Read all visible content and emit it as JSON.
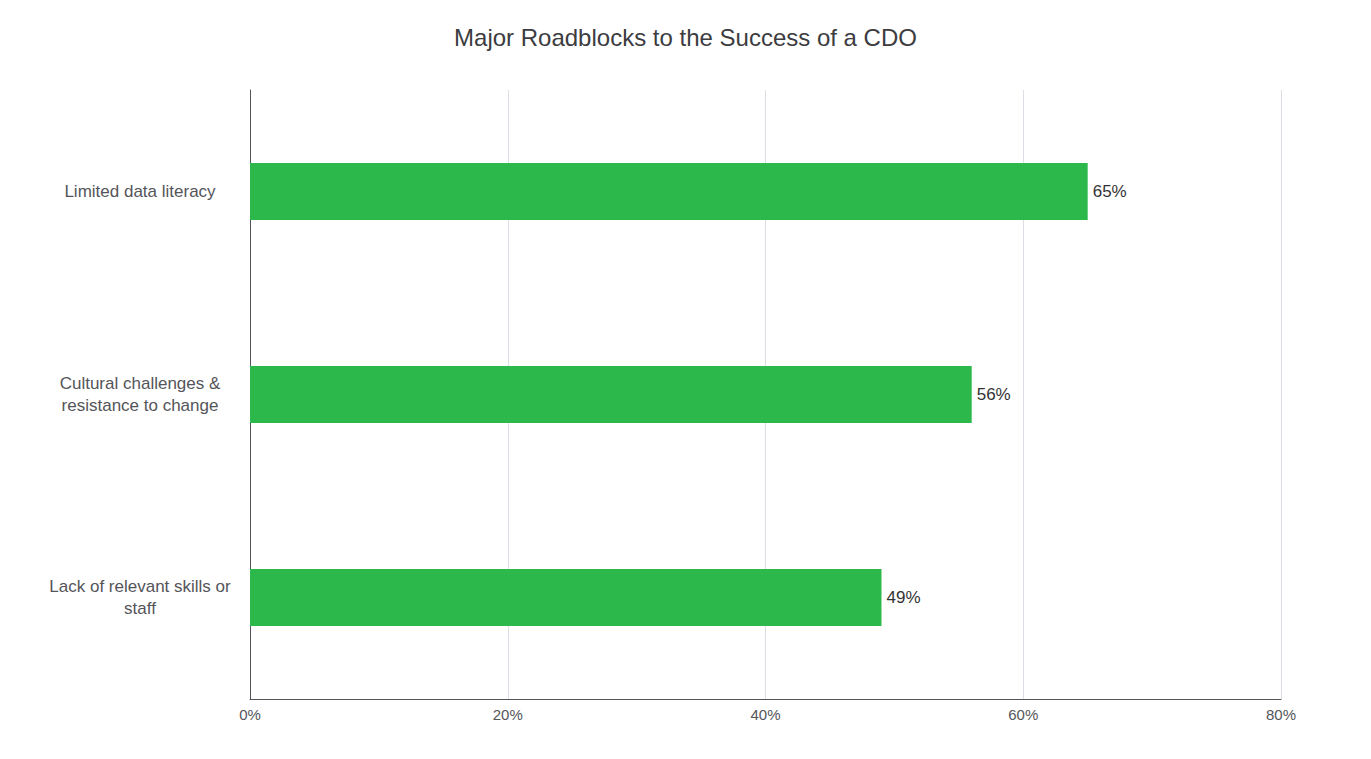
{
  "chart_data": {
    "type": "bar",
    "orientation": "horizontal",
    "title": "Major Roadblocks to the Success of a CDO",
    "categories": [
      "Lack of relevant skills or\nstaff",
      "Cultural challenges &\nresistance to change",
      "Limited data literacy"
    ],
    "values": [
      49,
      56,
      65
    ],
    "value_labels": [
      "49%",
      "56%",
      "65%"
    ],
    "data_labels": true,
    "color": "#2db84b",
    "xlim": [
      0,
      80
    ],
    "xticks": [
      {
        "value": 0,
        "label": "0%"
      },
      {
        "value": 20,
        "label": "20%"
      },
      {
        "value": 40,
        "label": "40%"
      },
      {
        "value": 60,
        "label": "60%"
      },
      {
        "value": 80,
        "label": "80%"
      }
    ],
    "grid": true
  }
}
